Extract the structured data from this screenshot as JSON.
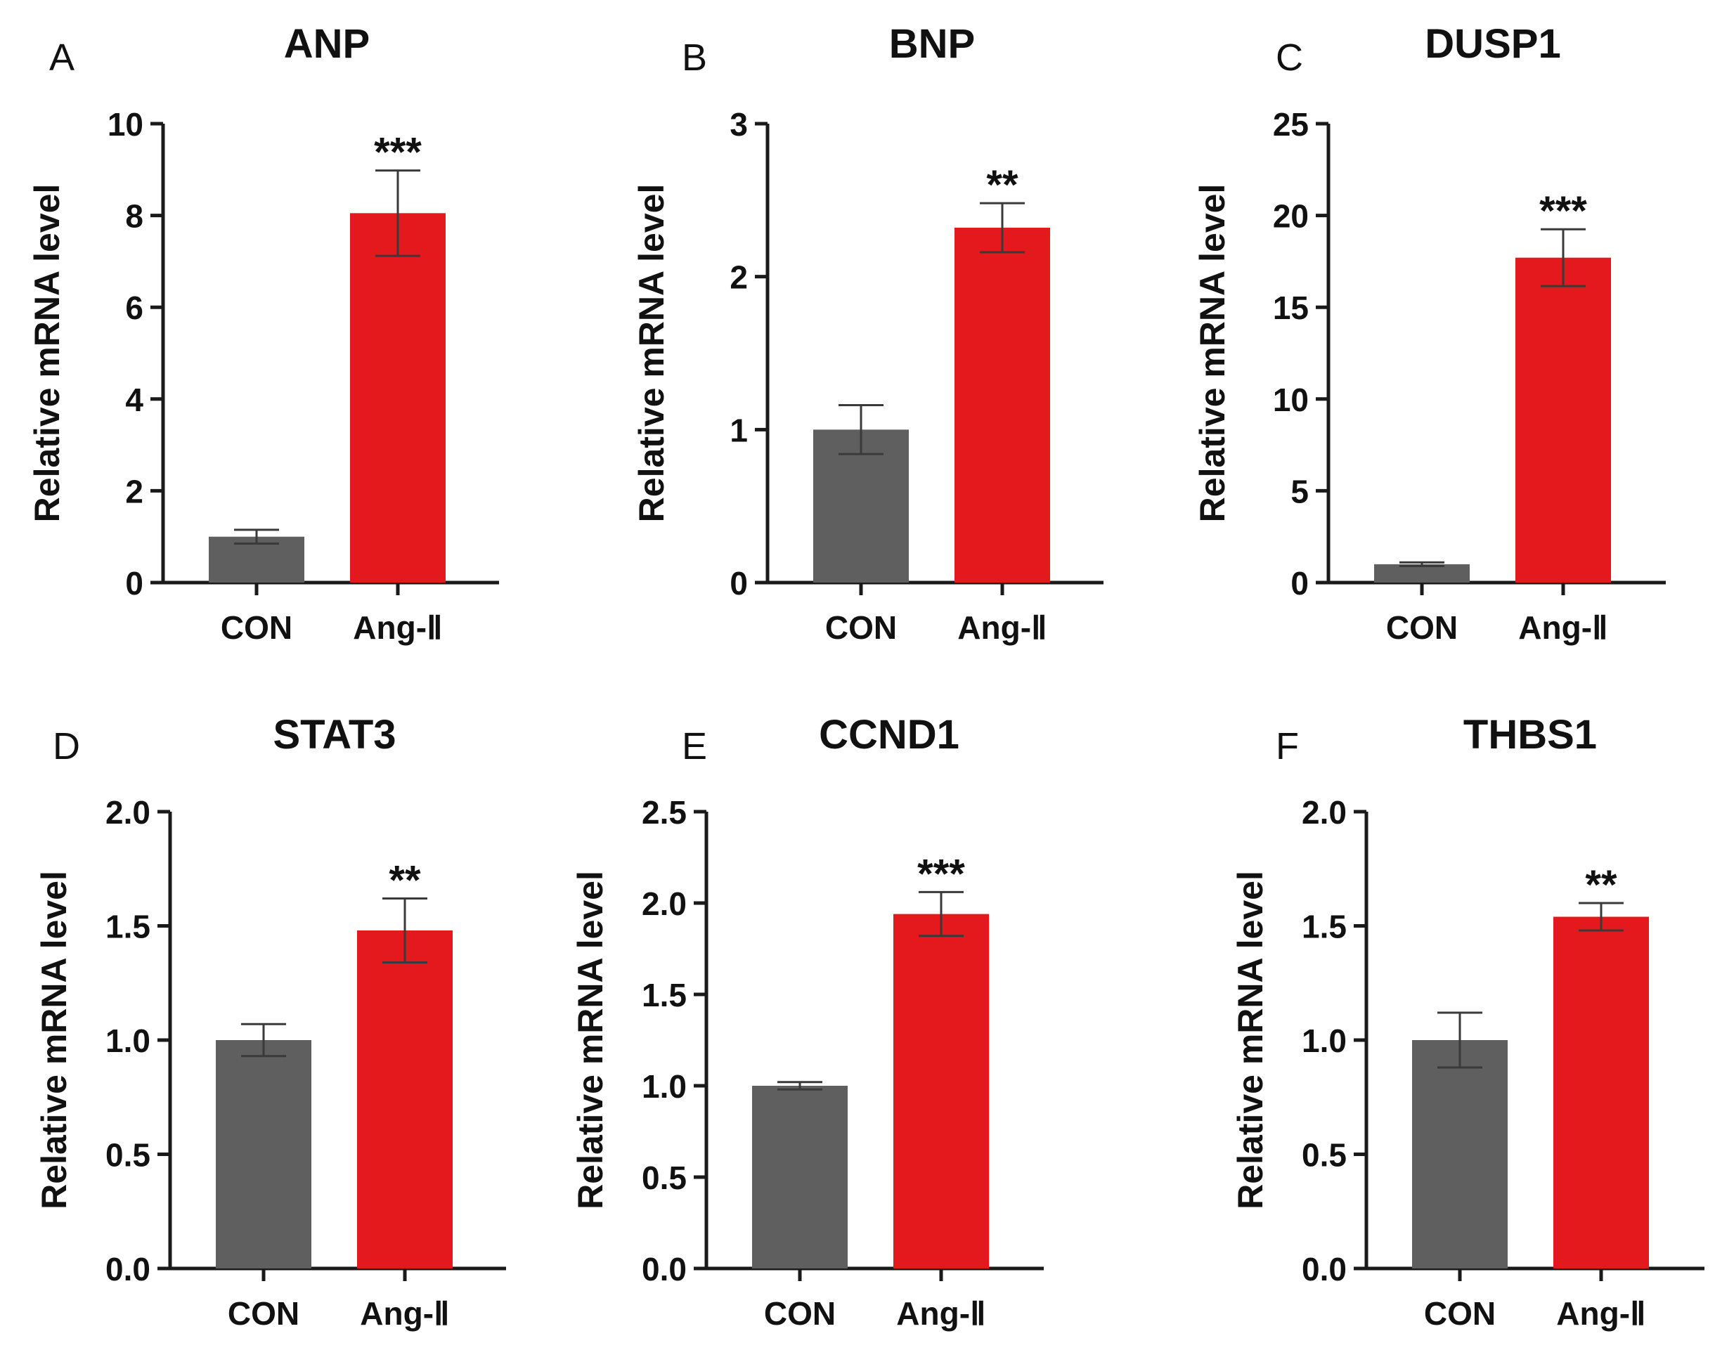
{
  "colors": {
    "con": "#5f5f5f",
    "ang": "#e3191e",
    "axis": "#1a1a1a",
    "error": "#3a3a3a"
  },
  "chart_data": [
    {
      "panel": "A",
      "type": "bar",
      "title": "ANP",
      "ylabel": "Relative mRNA level",
      "xlabel": "",
      "categories": [
        "CON",
        "Ang-Ⅱ"
      ],
      "values": [
        1.0,
        8.05
      ],
      "errors": [
        0.15,
        0.93
      ],
      "ylim": [
        0,
        10
      ],
      "yticks": [
        "0",
        "2",
        "4",
        "6",
        "8",
        "10"
      ],
      "significance": "***"
    },
    {
      "panel": "B",
      "type": "bar",
      "title": "BNP",
      "ylabel": "Relative mRNA level",
      "xlabel": "",
      "categories": [
        "CON",
        "Ang-Ⅱ"
      ],
      "values": [
        1.0,
        2.32
      ],
      "errors": [
        0.16,
        0.16
      ],
      "ylim": [
        0,
        3
      ],
      "yticks": [
        "0",
        "1",
        "2",
        "3"
      ],
      "significance": "**"
    },
    {
      "panel": "C",
      "type": "bar",
      "title": "DUSP1",
      "ylabel": "Relative mRNA level",
      "xlabel": "",
      "categories": [
        "CON",
        "Ang-Ⅱ"
      ],
      "values": [
        1.0,
        17.7
      ],
      "errors": [
        0.1,
        1.55
      ],
      "ylim": [
        0,
        25
      ],
      "yticks": [
        "0",
        "5",
        "10",
        "15",
        "20",
        "25"
      ],
      "significance": "***"
    },
    {
      "panel": "D",
      "type": "bar",
      "title": "STAT3",
      "ylabel": "Relative mRNA level",
      "xlabel": "",
      "categories": [
        "CON",
        "Ang-Ⅱ"
      ],
      "values": [
        1.0,
        1.48
      ],
      "errors": [
        0.07,
        0.14
      ],
      "ylim": [
        0,
        2.0
      ],
      "yticks": [
        "0.0",
        "0.5",
        "1.0",
        "1.5",
        "2.0"
      ],
      "significance": "**"
    },
    {
      "panel": "E",
      "type": "bar",
      "title": "CCND1",
      "ylabel": "Relative mRNA level",
      "xlabel": "",
      "categories": [
        "CON",
        "Ang-Ⅱ"
      ],
      "values": [
        1.0,
        1.94
      ],
      "errors": [
        0.02,
        0.12
      ],
      "ylim": [
        0,
        2.5
      ],
      "yticks": [
        "0.0",
        "0.5",
        "1.0",
        "1.5",
        "2.0",
        "2.5"
      ],
      "significance": "***"
    },
    {
      "panel": "F",
      "type": "bar",
      "title": "THBS1",
      "ylabel": "Relative mRNA level",
      "xlabel": "",
      "categories": [
        "CON",
        "Ang-Ⅱ"
      ],
      "values": [
        1.0,
        1.54
      ],
      "errors": [
        0.12,
        0.06
      ],
      "ylim": [
        0,
        2.0
      ],
      "yticks": [
        "0.0",
        "0.5",
        "1.0",
        "1.5",
        "2.0"
      ],
      "significance": "**"
    }
  ]
}
